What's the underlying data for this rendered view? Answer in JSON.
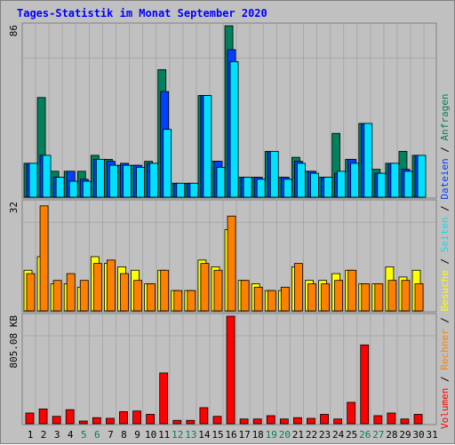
{
  "page": {
    "title": "Tages-Statistik im Monat September 2020"
  },
  "colors": {
    "background": "#c0c0c0",
    "title": "#0000ff",
    "hits": "#00805c",
    "files": "#0040ff",
    "pages": "#00e0ff",
    "visits": "#ffff00",
    "sites": "#ff8000",
    "kbytes": "#ff0000",
    "weekend_label": "#00805c",
    "weekday_label": "#000000"
  },
  "chart_data": [
    {
      "type": "bar",
      "panel": "requests",
      "scale_label": "86",
      "ylim": [
        0,
        86
      ],
      "x": [
        1,
        2,
        3,
        4,
        5,
        6,
        7,
        8,
        9,
        10,
        11,
        12,
        13,
        14,
        15,
        16,
        17,
        18,
        19,
        20,
        21,
        22,
        23,
        24,
        25,
        26,
        27,
        28,
        29,
        30
      ],
      "series": [
        {
          "name": "Anfragen",
          "color": "#00805c",
          "values": [
            17,
            50,
            13,
            13,
            13,
            21,
            19,
            16,
            16,
            18,
            64,
            7,
            7,
            51,
            18,
            86,
            10,
            10,
            23,
            10,
            20,
            13,
            10,
            32,
            19,
            37,
            14,
            17,
            23,
            21
          ]
        },
        {
          "name": "Dateien",
          "color": "#0040ff",
          "values": [
            17,
            21,
            10,
            13,
            9,
            19,
            18,
            17,
            16,
            17,
            53,
            7,
            7,
            51,
            18,
            74,
            10,
            10,
            23,
            10,
            18,
            13,
            10,
            12,
            19,
            37,
            12,
            17,
            14,
            21
          ]
        },
        {
          "name": "Seiten",
          "color": "#00e0ff",
          "values": [
            17,
            21,
            10,
            8,
            8,
            19,
            16,
            16,
            15,
            17,
            34,
            7,
            7,
            51,
            15,
            68,
            10,
            9,
            23,
            9,
            17,
            12,
            10,
            13,
            17,
            37,
            12,
            17,
            13,
            21
          ]
        }
      ]
    },
    {
      "type": "bar",
      "panel": "visits",
      "scale_label": "32",
      "ylim": [
        0,
        32
      ],
      "x": [
        1,
        2,
        3,
        4,
        5,
        6,
        7,
        8,
        9,
        10,
        11,
        12,
        13,
        14,
        15,
        16,
        17,
        18,
        19,
        20,
        21,
        22,
        23,
        24,
        25,
        26,
        27,
        28,
        29,
        30
      ],
      "series": [
        {
          "name": "Besuche",
          "color": "#ffff00",
          "values": [
            12,
            16,
            8,
            8,
            7,
            16,
            14,
            13,
            12,
            8,
            12,
            6,
            6,
            15,
            13,
            24,
            9,
            8,
            6,
            6,
            13,
            9,
            9,
            11,
            12,
            8,
            8,
            13,
            10,
            12
          ]
        },
        {
          "name": "Rechner",
          "color": "#ff8000",
          "values": [
            11,
            31,
            9,
            11,
            9,
            14,
            15,
            11,
            9,
            8,
            12,
            6,
            6,
            14,
            12,
            28,
            9,
            7,
            6,
            7,
            14,
            8,
            8,
            9,
            12,
            8,
            8,
            9,
            9,
            8
          ]
        }
      ]
    },
    {
      "type": "bar",
      "panel": "volume",
      "scale_label": "805.08 KB",
      "ylim": [
        0,
        805.08
      ],
      "x": [
        1,
        2,
        3,
        4,
        5,
        6,
        7,
        8,
        9,
        10,
        11,
        12,
        13,
        14,
        15,
        16,
        17,
        18,
        19,
        20,
        21,
        22,
        23,
        24,
        25,
        26,
        27,
        28,
        29,
        30
      ],
      "series": [
        {
          "name": "Volumen",
          "color": "#ff0000",
          "values": [
            80,
            110,
            55,
            105,
            20,
            45,
            40,
            90,
            95,
            70,
            380,
            25,
            25,
            120,
            55,
            805,
            35,
            35,
            60,
            35,
            45,
            40,
            70,
            35,
            160,
            590,
            60,
            80,
            35,
            70
          ]
        }
      ]
    }
  ],
  "x_axis_labels": [
    {
      "day": "1",
      "weekend": false
    },
    {
      "day": "2",
      "weekend": false
    },
    {
      "day": "3",
      "weekend": false
    },
    {
      "day": "4",
      "weekend": false
    },
    {
      "day": "5",
      "weekend": true
    },
    {
      "day": "6",
      "weekend": true
    },
    {
      "day": "7",
      "weekend": false
    },
    {
      "day": "8",
      "weekend": false
    },
    {
      "day": "9",
      "weekend": false
    },
    {
      "day": "10",
      "weekend": false
    },
    {
      "day": "11",
      "weekend": false
    },
    {
      "day": "12",
      "weekend": true
    },
    {
      "day": "13",
      "weekend": true
    },
    {
      "day": "14",
      "weekend": false
    },
    {
      "day": "15",
      "weekend": false
    },
    {
      "day": "16",
      "weekend": false
    },
    {
      "day": "17",
      "weekend": false
    },
    {
      "day": "18",
      "weekend": false
    },
    {
      "day": "19",
      "weekend": true
    },
    {
      "day": "20",
      "weekend": true
    },
    {
      "day": "21",
      "weekend": false
    },
    {
      "day": "22",
      "weekend": false
    },
    {
      "day": "23",
      "weekend": false
    },
    {
      "day": "24",
      "weekend": false
    },
    {
      "day": "25",
      "weekend": false
    },
    {
      "day": "26",
      "weekend": true
    },
    {
      "day": "27",
      "weekend": true
    },
    {
      "day": "28",
      "weekend": false
    },
    {
      "day": "29",
      "weekend": false
    },
    {
      "day": "30",
      "weekend": false
    },
    {
      "day": "31",
      "weekend": false
    }
  ],
  "right_legend": [
    {
      "text": "Volumen",
      "color": "#ff0000"
    },
    {
      "text": "/",
      "color": "#000000"
    },
    {
      "text": "Rechner",
      "color": "#ff8000"
    },
    {
      "text": "/",
      "color": "#000000"
    },
    {
      "text": "Besuche",
      "color": "#ffff00"
    },
    {
      "text": "/",
      "color": "#000000"
    },
    {
      "text": "Seiten",
      "color": "#00e0ff"
    },
    {
      "text": "/",
      "color": "#000000"
    },
    {
      "text": "Dateien",
      "color": "#0040ff"
    },
    {
      "text": "/",
      "color": "#000000"
    },
    {
      "text": "Anfragen",
      "color": "#00805c"
    }
  ]
}
